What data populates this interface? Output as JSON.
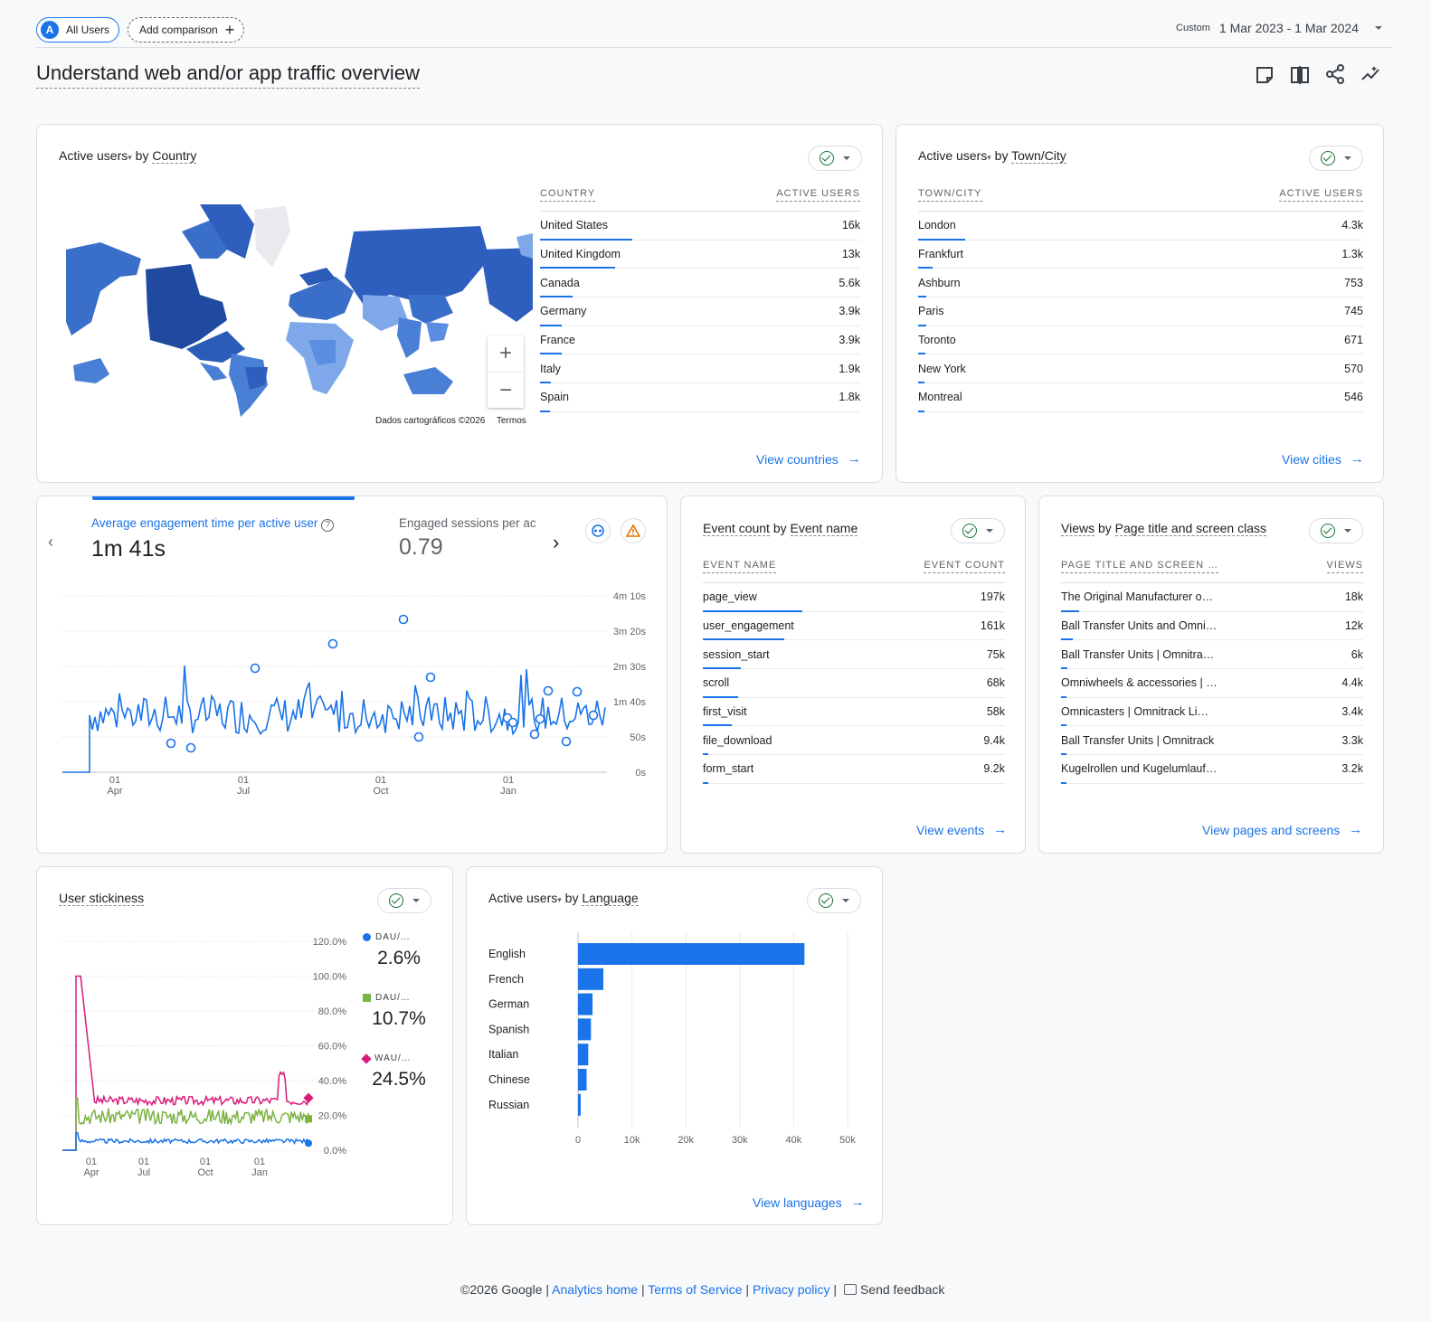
{
  "header": {
    "segment_chip": {
      "avatar": "A",
      "label": "All Users"
    },
    "add_comparison": "Add comparison",
    "date_label": "Custom",
    "date_range": "1 Mar 2023 - 1 Mar 2024",
    "page_title": "Understand web and/or app traffic overview",
    "icons": [
      "customize-report-icon",
      "compare-icon",
      "share-icon",
      "insights-icon"
    ]
  },
  "country_card": {
    "title_metric": "Active users",
    "title_by": "by",
    "title_dim": "Country",
    "map_credit": "Dados cartográficos ©2026",
    "map_terms": "Termos",
    "headers": [
      "COUNTRY",
      "ACTIVE USERS"
    ],
    "rows": [
      {
        "label": "United States",
        "value": "16k",
        "share": 1.0
      },
      {
        "label": "United Kingdom",
        "value": "13k",
        "share": 0.81
      },
      {
        "label": "Canada",
        "value": "5.6k",
        "share": 0.35
      },
      {
        "label": "Germany",
        "value": "3.9k",
        "share": 0.24
      },
      {
        "label": "France",
        "value": "3.9k",
        "share": 0.24
      },
      {
        "label": "Italy",
        "value": "1.9k",
        "share": 0.12
      },
      {
        "label": "Spain",
        "value": "1.8k",
        "share": 0.11
      }
    ],
    "link": "View countries"
  },
  "city_card": {
    "title_metric": "Active users",
    "title_by": "by",
    "title_dim": "Town/City",
    "headers": [
      "TOWN/CITY",
      "ACTIVE USERS"
    ],
    "rows": [
      {
        "label": "London",
        "value": "4.3k",
        "share": 1.0
      },
      {
        "label": "Frankfurt",
        "value": "1.3k",
        "share": 0.3
      },
      {
        "label": "Ashburn",
        "value": "753",
        "share": 0.18
      },
      {
        "label": "Paris",
        "value": "745",
        "share": 0.17
      },
      {
        "label": "Toronto",
        "value": "671",
        "share": 0.16
      },
      {
        "label": "New York",
        "value": "570",
        "share": 0.13
      },
      {
        "label": "Montreal",
        "value": "546",
        "share": 0.13
      }
    ],
    "link": "View cities"
  },
  "engagement_card": {
    "metric1_label": "Average engagement time per active user",
    "metric1_value": "1m 41s",
    "metric2_label": "Engaged sessions per ac",
    "metric2_value": "0.79",
    "chart_data": {
      "type": "line",
      "y_ticks": [
        "4m 10s",
        "3m 20s",
        "2m 30s",
        "1m 40s",
        "50s",
        "0s"
      ],
      "x_ticks": [
        {
          "day": "01",
          "month": "Apr"
        },
        {
          "day": "01",
          "month": "Jul"
        },
        {
          "day": "01",
          "month": "Oct"
        },
        {
          "day": "01",
          "month": "Jan"
        }
      ],
      "ylim": [
        0,
        250
      ]
    }
  },
  "events_card": {
    "title_metric": "Event count",
    "title_by": "by",
    "title_dim": "Event name",
    "headers": [
      "EVENT NAME",
      "EVENT COUNT"
    ],
    "rows": [
      {
        "label": "page_view",
        "value": "197k",
        "share": 1.0
      },
      {
        "label": "user_engagement",
        "value": "161k",
        "share": 0.82
      },
      {
        "label": "session_start",
        "value": "75k",
        "share": 0.38
      },
      {
        "label": "scroll",
        "value": "68k",
        "share": 0.35
      },
      {
        "label": "first_visit",
        "value": "58k",
        "share": 0.29
      },
      {
        "label": "file_download",
        "value": "9.4k",
        "share": 0.05
      },
      {
        "label": "form_start",
        "value": "9.2k",
        "share": 0.05
      }
    ],
    "link": "View events"
  },
  "pages_card": {
    "title_metric": "Views",
    "title_by": "by",
    "title_dim": "Page title and screen class",
    "headers": [
      "PAGE TITLE AND SCREEN …",
      "VIEWS"
    ],
    "rows": [
      {
        "label": "The Original Manufacturer o…",
        "value": "18k",
        "share": 1.0
      },
      {
        "label": "Ball Transfer Units and Omni…",
        "value": "12k",
        "share": 0.67
      },
      {
        "label": "Ball Transfer Units | Omnitra…",
        "value": "6k",
        "share": 0.33
      },
      {
        "label": "Omniwheels & accessories | …",
        "value": "4.4k",
        "share": 0.24
      },
      {
        "label": "Omnicasters | Omnitrack Li…",
        "value": "3.4k",
        "share": 0.19
      },
      {
        "label": "Ball Transfer Units | Omnitrack",
        "value": "3.3k",
        "share": 0.18
      },
      {
        "label": "Kugelrollen und Kugelumlauf…",
        "value": "3.2k",
        "share": 0.18
      }
    ],
    "link": "View pages and screens"
  },
  "stickiness_card": {
    "title": "User stickiness",
    "legend": [
      {
        "label": "DAU/…",
        "value": "2.6%",
        "color": "#1a73e8",
        "shape": "circle"
      },
      {
        "label": "DAU/…",
        "value": "10.7%",
        "color": "#7cb342",
        "shape": "square"
      },
      {
        "label": "WAU/…",
        "value": "24.5%",
        "color": "#d81b7a",
        "shape": "diamond"
      }
    ],
    "chart_data": {
      "type": "line",
      "y_ticks": [
        "120.0%",
        "100.0%",
        "80.0%",
        "60.0%",
        "40.0%",
        "20.0%",
        "0.0%"
      ],
      "x_ticks": [
        {
          "day": "01",
          "month": "Apr"
        },
        {
          "day": "01",
          "month": "Jul"
        },
        {
          "day": "01",
          "month": "Oct"
        },
        {
          "day": "01",
          "month": "Jan"
        }
      ],
      "ylim": [
        0,
        120
      ]
    }
  },
  "language_card": {
    "title_metric": "Active users",
    "title_by": "by",
    "title_dim": "Language",
    "chart_data": {
      "type": "bar",
      "orientation": "horizontal",
      "categories": [
        "English",
        "French",
        "German",
        "Spanish",
        "Italian",
        "Chinese",
        "Russian"
      ],
      "values": [
        42000,
        4700,
        2700,
        2400,
        1900,
        1600,
        500
      ],
      "xlim": [
        0,
        50000
      ],
      "x_ticks": [
        "0",
        "10k",
        "20k",
        "30k",
        "40k",
        "50k"
      ],
      "color": "#1a73e8"
    },
    "link": "View languages"
  },
  "footer": {
    "copyright": "©2026 Google",
    "links": [
      "Analytics home",
      "Terms of Service",
      "Privacy policy"
    ],
    "feedback": "Send feedback"
  }
}
